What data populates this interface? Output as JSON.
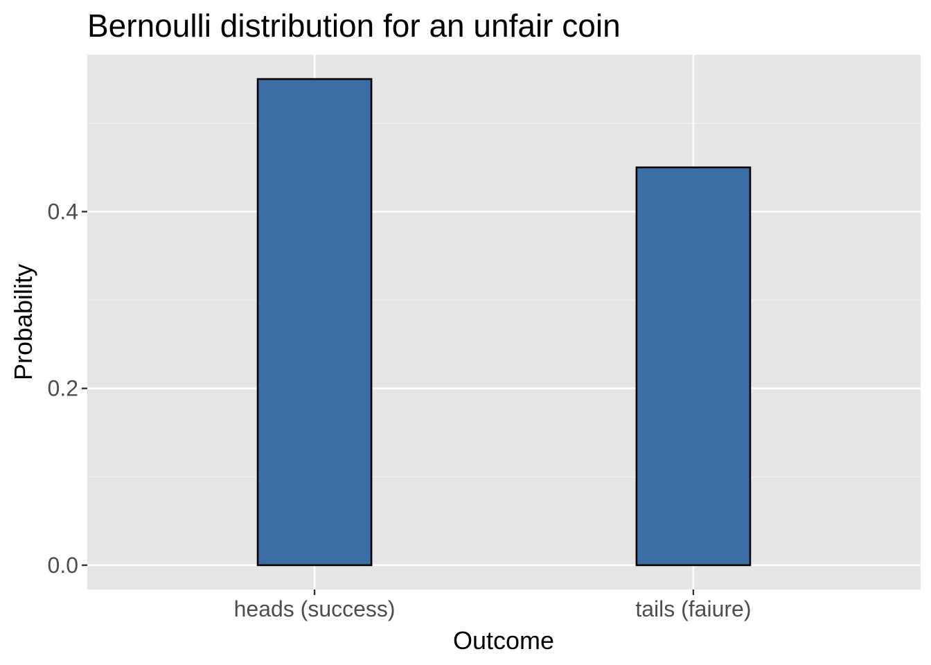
{
  "chart_data": {
    "type": "bar",
    "title": "Bernoulli distribution for an unfair coin",
    "xlabel": "Outcome",
    "ylabel": "Probability",
    "categories": [
      "heads (success)",
      "tails (faiure)"
    ],
    "values": [
      0.55,
      0.45
    ],
    "ylim": [
      -0.0275,
      0.5775
    ],
    "yticks": [
      0.0,
      0.2,
      0.4
    ],
    "ytick_labels": [
      "0.0",
      "0.2",
      "0.4"
    ],
    "grid": true,
    "legend": "none",
    "colors": {
      "bar_fill": "#3a6ea5",
      "bar_outline": "#000000",
      "panel_background": "#e5e5e5",
      "grid_major": "#ffffff",
      "grid_minor": "#f2f2f2"
    }
  }
}
